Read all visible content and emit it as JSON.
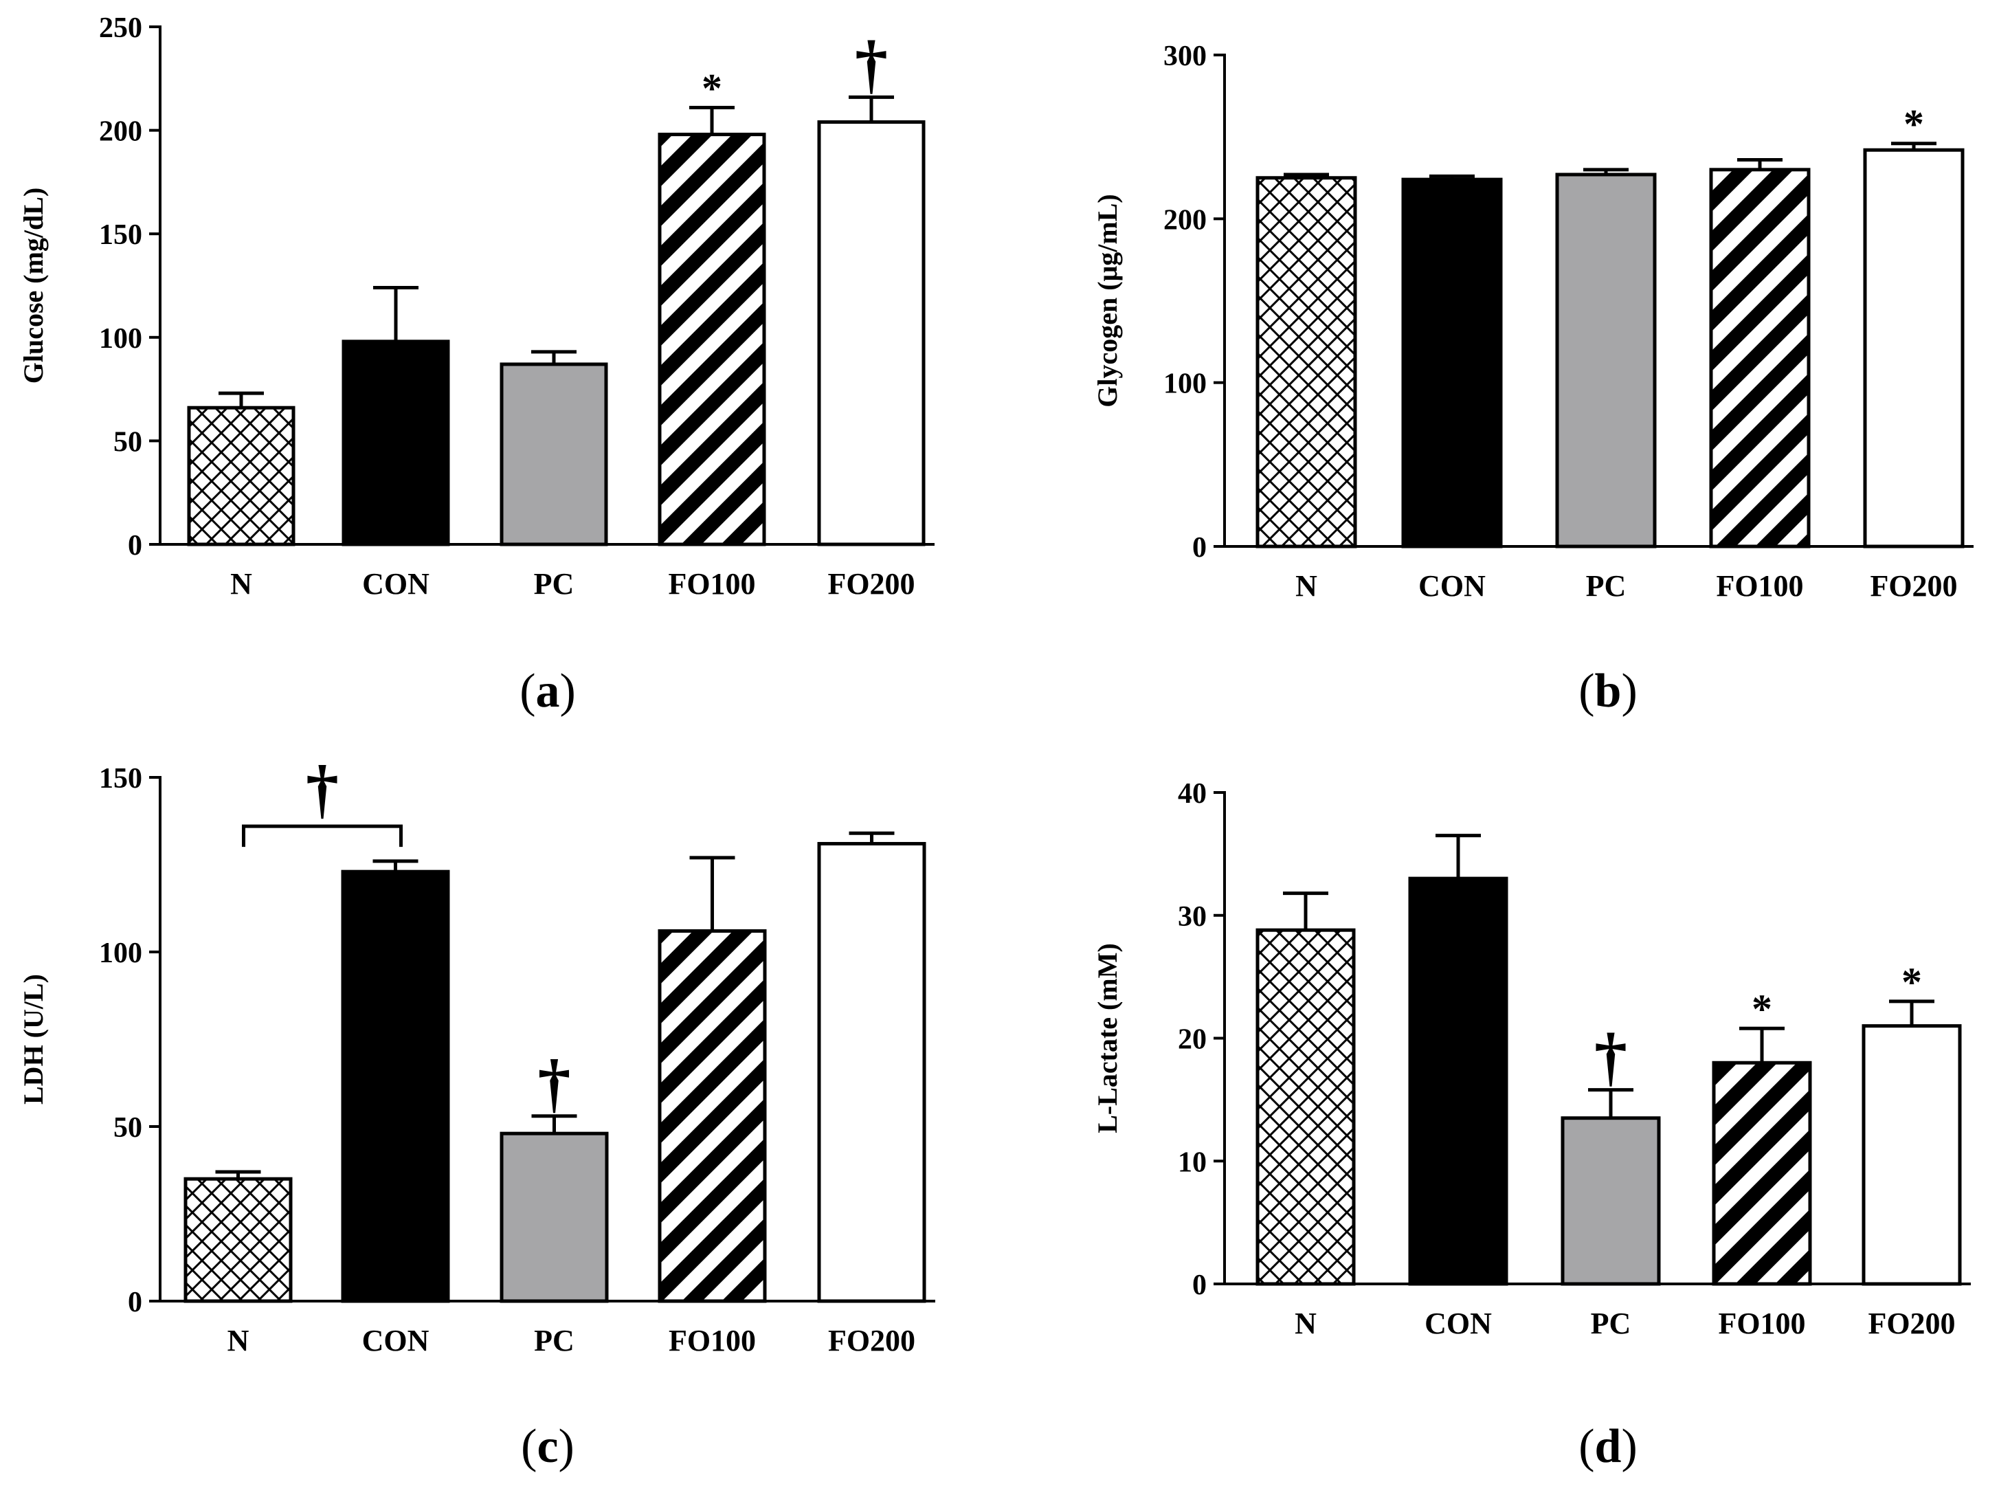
{
  "colors": {
    "black": "#000000",
    "gray": "#a6a6a8",
    "white": "#ffffff",
    "ink": "#000000"
  },
  "chart_data": [
    {
      "type": "bar",
      "panel": "a",
      "caption_parts": [
        "(",
        "a",
        ")"
      ],
      "ylabel": "Glucose (mg/dL)",
      "xlabel": "",
      "ylim": [
        0,
        250
      ],
      "yticks": [
        "0",
        "50",
        "100",
        "150",
        "200",
        "250"
      ],
      "categories": [
        "N",
        "CON",
        "PC",
        "FO100",
        "FO200"
      ],
      "values": [
        66,
        98,
        87,
        198,
        204
      ],
      "errors": [
        7,
        26,
        6,
        13,
        12
      ],
      "fills": [
        "crosshatch",
        "black",
        "gray",
        "stripe",
        "white"
      ],
      "annotations": [
        {
          "bar": 3,
          "text": "*"
        },
        {
          "bar": 4,
          "text": "†"
        }
      ],
      "brackets": []
    },
    {
      "type": "bar",
      "panel": "b",
      "caption_parts": [
        "(",
        "b",
        ")"
      ],
      "ylabel": "Glycogen (μg/mL)",
      "xlabel": "",
      "ylim": [
        0,
        300
      ],
      "yticks": [
        "0",
        "100",
        "200",
        "300"
      ],
      "categories": [
        "N",
        "CON",
        "PC",
        "FO100",
        "FO200"
      ],
      "values": [
        225,
        224,
        227,
        230,
        242
      ],
      "errors": [
        2,
        2,
        3,
        6,
        4
      ],
      "fills": [
        "crosshatch",
        "black",
        "gray",
        "stripe",
        "white"
      ],
      "annotations": [
        {
          "bar": 4,
          "text": "*"
        }
      ],
      "brackets": []
    },
    {
      "type": "bar",
      "panel": "c",
      "caption_parts": [
        "(",
        "c",
        ")"
      ],
      "ylabel": "LDH (U/L)",
      "xlabel": "",
      "ylim": [
        0,
        150
      ],
      "yticks": [
        "0",
        "50",
        "100",
        "150"
      ],
      "categories": [
        "N",
        "CON",
        "PC",
        "FO100",
        "FO200"
      ],
      "values": [
        35,
        123,
        48,
        106,
        131
      ],
      "errors": [
        2,
        3,
        5,
        21,
        3
      ],
      "fills": [
        "crosshatch",
        "black",
        "gray",
        "stripe",
        "white"
      ],
      "annotations": [
        {
          "bar": 2,
          "text": "†"
        }
      ],
      "brackets": [
        {
          "from": 0,
          "to": 1,
          "level": 136,
          "text": "†"
        }
      ]
    },
    {
      "type": "bar",
      "panel": "d",
      "caption_parts": [
        "(",
        "d",
        ")"
      ],
      "ylabel": "L-Lactate (mM)",
      "xlabel": "",
      "ylim": [
        0,
        40
      ],
      "yticks": [
        "0",
        "10",
        "20",
        "30",
        "40"
      ],
      "categories": [
        "N",
        "CON",
        "PC",
        "FO100",
        "FO200"
      ],
      "values": [
        28.8,
        33,
        13.5,
        18,
        21
      ],
      "errors": [
        3,
        3.5,
        2.3,
        2.8,
        2
      ],
      "fills": [
        "crosshatch",
        "black",
        "gray",
        "stripe",
        "white"
      ],
      "annotations": [
        {
          "bar": 2,
          "text": "†"
        },
        {
          "bar": 3,
          "text": "*"
        },
        {
          "bar": 4,
          "text": "*"
        }
      ],
      "brackets": []
    }
  ]
}
